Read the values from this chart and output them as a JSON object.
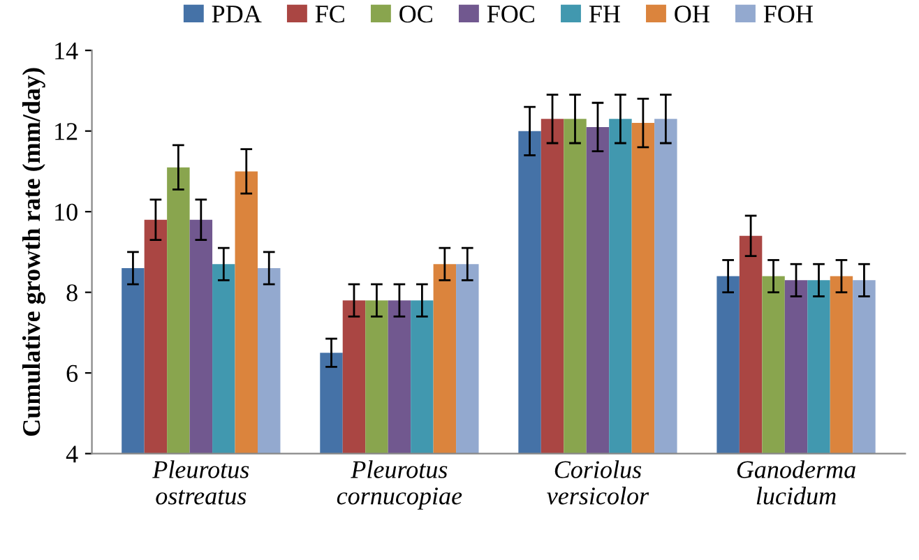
{
  "chart_data": {
    "type": "bar",
    "ylabel": "Cumulative growth rate (mm/day)",
    "categories": [
      "Pleurotus\nostreatus",
      "Pleurotus\ncornucopiae",
      "Coriolus\nversicolor",
      "Ganoderma\nlucidum"
    ],
    "series": [
      {
        "name": "PDA",
        "color": "#4572a7",
        "values": [
          8.6,
          6.5,
          12.0,
          8.4
        ],
        "errors": [
          0.4,
          0.35,
          0.6,
          0.4
        ]
      },
      {
        "name": "FC",
        "color": "#aa4643",
        "values": [
          9.8,
          7.8,
          12.3,
          9.4
        ],
        "errors": [
          0.5,
          0.4,
          0.6,
          0.5
        ]
      },
      {
        "name": "OC",
        "color": "#89a54e",
        "values": [
          11.1,
          7.8,
          12.3,
          8.4
        ],
        "errors": [
          0.55,
          0.4,
          0.6,
          0.4
        ]
      },
      {
        "name": "FOC",
        "color": "#71588f",
        "values": [
          9.8,
          7.8,
          12.1,
          8.3
        ],
        "errors": [
          0.5,
          0.4,
          0.6,
          0.4
        ]
      },
      {
        "name": "FH",
        "color": "#4198af",
        "values": [
          8.7,
          7.8,
          12.3,
          8.3
        ],
        "errors": [
          0.4,
          0.4,
          0.6,
          0.4
        ]
      },
      {
        "name": "OH",
        "color": "#db843d",
        "values": [
          11.0,
          8.7,
          12.2,
          8.4
        ],
        "errors": [
          0.55,
          0.4,
          0.6,
          0.4
        ]
      },
      {
        "name": "FOH",
        "color": "#93a9cf",
        "values": [
          8.6,
          8.7,
          12.3,
          8.3
        ],
        "errors": [
          0.4,
          0.4,
          0.6,
          0.4
        ]
      }
    ],
    "ylim": [
      4,
      14
    ],
    "yticks": [
      4,
      6,
      8,
      10,
      12,
      14
    ],
    "grid": false,
    "legend": "top"
  }
}
